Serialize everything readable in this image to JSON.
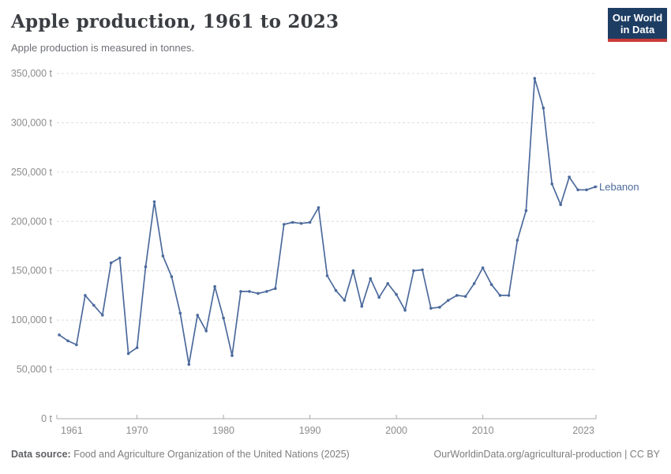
{
  "header": {
    "title": "Apple production, 1961 to 2023",
    "subtitle": "Apple production is measured in tonnes."
  },
  "logo": {
    "line1": "Our World",
    "line2": "in Data",
    "bg_color": "#1d3d63",
    "bar_color": "#c93b37"
  },
  "chart_data": {
    "type": "line",
    "title": "Apple production, 1961 to 2023",
    "ylabel": "tonnes",
    "xlim": [
      1961,
      2023
    ],
    "ylim": [
      0,
      350000
    ],
    "grid": "horizontal-dashed",
    "legend_position": "end-of-line-label",
    "x_tick_labels": [
      "1961",
      "1970",
      "1980",
      "1990",
      "2000",
      "2010",
      "2023"
    ],
    "x_tick_years": [
      1961,
      1970,
      1980,
      1990,
      2000,
      2010,
      2023
    ],
    "y_tick_labels": [
      "0 t",
      "50,000 t",
      "100,000 t",
      "150,000 t",
      "200,000 t",
      "250,000 t",
      "300,000 t",
      "350,000 t"
    ],
    "y_tick_values": [
      0,
      50000,
      100000,
      150000,
      200000,
      250000,
      300000,
      350000
    ],
    "series": [
      {
        "name": "Lebanon",
        "color": "#4c6a9c",
        "x": [
          1961,
          1962,
          1963,
          1964,
          1965,
          1966,
          1967,
          1968,
          1969,
          1970,
          1971,
          1972,
          1973,
          1974,
          1975,
          1976,
          1977,
          1978,
          1979,
          1980,
          1981,
          1982,
          1983,
          1984,
          1985,
          1986,
          1987,
          1988,
          1989,
          1990,
          1991,
          1992,
          1993,
          1994,
          1995,
          1996,
          1997,
          1998,
          1999,
          2000,
          2001,
          2002,
          2003,
          2004,
          2005,
          2006,
          2007,
          2008,
          2009,
          2010,
          2011,
          2012,
          2013,
          2014,
          2015,
          2016,
          2017,
          2018,
          2019,
          2020,
          2021,
          2022,
          2023
        ],
        "values": [
          85000,
          79000,
          75000,
          125000,
          115000,
          105000,
          158000,
          163000,
          66000,
          72000,
          154000,
          220000,
          165000,
          144000,
          107000,
          55000,
          105000,
          89000,
          134000,
          102000,
          64000,
          129000,
          129000,
          127000,
          129000,
          132000,
          197000,
          199000,
          198000,
          199000,
          214000,
          145000,
          130000,
          120000,
          150000,
          114000,
          142000,
          123000,
          137000,
          126000,
          110000,
          150000,
          151000,
          112000,
          113000,
          120000,
          125000,
          124000,
          137000,
          153000,
          136000,
          125000,
          125000,
          181000,
          211000,
          345000,
          315000,
          238000,
          217000,
          245000,
          232000,
          232000,
          235000
        ]
      }
    ]
  },
  "footer": {
    "source_label": "Data source:",
    "source_text": " Food and Agriculture Organization of the United Nations (2025)",
    "right_text": "OurWorldinData.org/agricultural-production | CC BY"
  }
}
